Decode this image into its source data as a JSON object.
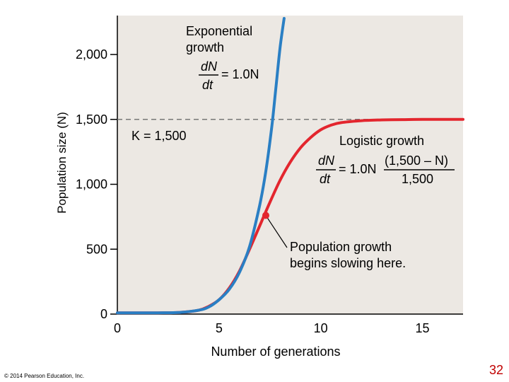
{
  "chart_data": {
    "type": "line",
    "xlabel": "Number of generations",
    "ylabel": "Population size (N)",
    "xlim": [
      0,
      17
    ],
    "ylim": [
      0,
      2300
    ],
    "xticks": [
      0,
      5,
      10,
      15
    ],
    "yticks": [
      0,
      500,
      1000,
      1500,
      2000
    ],
    "x_tick_labels": [
      "0",
      "5",
      "10",
      "15"
    ],
    "y_tick_labels": [
      "0",
      "500",
      "1,000",
      "1,500",
      "2,000"
    ],
    "grid": false,
    "carrying_capacity": {
      "value": 1500,
      "label": "K = 1,500",
      "style": "dashed"
    },
    "series": [
      {
        "color": "#2a7fc4",
        "x": [
          0,
          2,
          3,
          4,
          4.5,
          5,
          5.5,
          6,
          6.5,
          7,
          7.3,
          7.6,
          7.8,
          8.0,
          8.2
        ],
        "y": [
          10,
          10,
          12,
          30,
          55,
          110,
          190,
          320,
          520,
          840,
          1100,
          1450,
          1750,
          2050,
          2300
        ]
      },
      {
        "color": "#e3262e",
        "x": [
          0,
          2,
          3,
          4,
          4.5,
          5,
          5.5,
          6,
          6.5,
          7,
          7.5,
          8,
          8.5,
          9,
          9.5,
          10,
          10.5,
          11,
          12,
          13,
          14,
          15,
          16,
          17
        ],
        "y": [
          10,
          10,
          12,
          30,
          60,
          110,
          200,
          330,
          500,
          680,
          860,
          1030,
          1170,
          1280,
          1360,
          1420,
          1455,
          1475,
          1490,
          1496,
          1498,
          1500,
          1500,
          1500
        ]
      }
    ],
    "marker_point": {
      "x": 7.3,
      "y": 760
    },
    "annotations": {
      "exponential_title_line1": "Exponential",
      "exponential_title_line2": "growth",
      "exponential_eq_num": "dN",
      "exponential_eq_den": "dt",
      "exponential_eq_rhs": "= 1.0N",
      "logistic_title": "Logistic growth",
      "logistic_eq_num": "dN",
      "logistic_eq_den": "dt",
      "logistic_eq_mid": "= 1.0N",
      "logistic_frac_num": "(1,500 – N)",
      "logistic_frac_den": "1,500",
      "slowing_line1": "Population growth",
      "slowing_line2": "begins slowing here."
    },
    "colors": {
      "plot_bg": "#ece8e3",
      "axis": "#000000",
      "dashed": "#777777"
    }
  },
  "footer": {
    "copyright": "© 2014 Pearson Education, Inc.",
    "slide_number": "32"
  }
}
